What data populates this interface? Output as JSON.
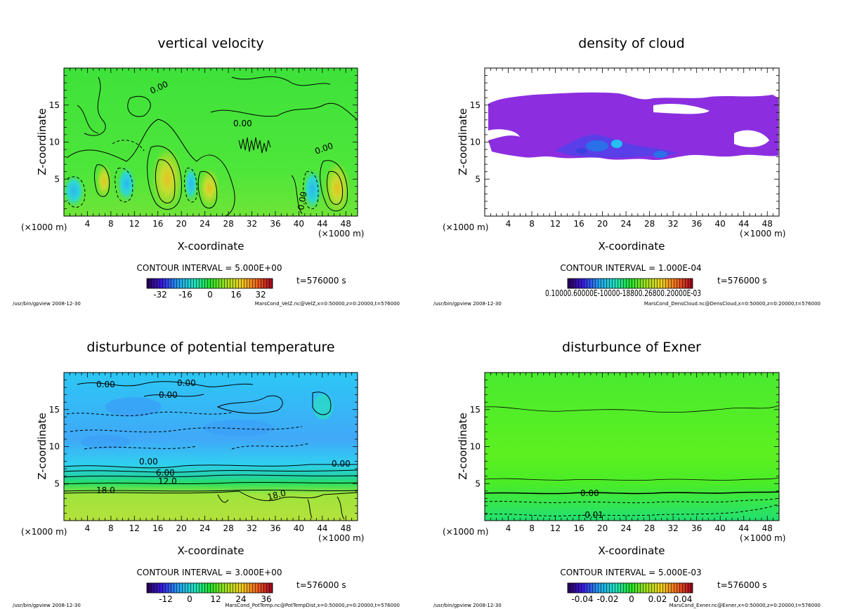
{
  "chart_data": [
    {
      "type": "heatmap",
      "title": "vertical velocity",
      "xlabel": "X-coordinate",
      "ylabel": "Z-coordinate",
      "x_unit": "(×1000 m)",
      "xlim": [
        0,
        50
      ],
      "ylim": [
        0,
        20
      ],
      "x_ticks": [
        "4",
        "8",
        "12",
        "16",
        "20",
        "24",
        "28",
        "32",
        "36",
        "40",
        "44",
        "48"
      ],
      "y_ticks": [
        "5",
        "10",
        "15"
      ],
      "contour_interval": "CONTOUR INTERVAL = 5.000E+00",
      "time": "t=576000 s",
      "colorbar_ticks": [
        "-32",
        "-16",
        "0",
        "16",
        "32"
      ],
      "contour_labels": [
        "0.00",
        "0.00",
        "0.00",
        "0.00"
      ],
      "footer_left": "/usr/bin/gpview  2008-12-30",
      "footer_right": "MarsCond_VelZ.nc@VelZ,x=0:50000,z=0:20000,t=576000"
    },
    {
      "type": "heatmap",
      "title": "density of cloud",
      "xlabel": "X-coordinate",
      "ylabel": "Z-coordinate",
      "x_unit": "(×1000 m)",
      "xlim": [
        0,
        50
      ],
      "ylim": [
        0,
        20
      ],
      "x_ticks": [
        "4",
        "8",
        "12",
        "16",
        "20",
        "24",
        "28",
        "32",
        "36",
        "40",
        "44",
        "48"
      ],
      "y_ticks": [
        "5",
        "10",
        "15"
      ],
      "contour_interval": "CONTOUR INTERVAL = 1.000E-04",
      "time": "t=576000 s",
      "colorbar_ticks_overlap": "0.10000.60000E-10000-18800.26800.20000E-03",
      "footer_left": "/usr/bin/gpview  2008-12-30",
      "footer_right": "MarsCond_DensCloud.nc@DensCloud,x=0:50000,z=0:20000,t=576000"
    },
    {
      "type": "heatmap",
      "title": "disturbunce of potential temperature",
      "xlabel": "X-coordinate",
      "ylabel": "Z-coordinate",
      "x_unit": "(×1000 m)",
      "xlim": [
        0,
        50
      ],
      "ylim": [
        0,
        20
      ],
      "x_ticks": [
        "4",
        "8",
        "12",
        "16",
        "20",
        "24",
        "28",
        "32",
        "36",
        "40",
        "44",
        "48"
      ],
      "y_ticks": [
        "5",
        "10",
        "15"
      ],
      "contour_interval": "CONTOUR INTERVAL = 3.000E+00",
      "time": "t=576000 s",
      "colorbar_ticks": [
        "-12",
        "0",
        "12",
        "24",
        "36"
      ],
      "contour_labels": [
        "0.00",
        "0.00",
        "0.00",
        "0.00",
        "0.00",
        "6.00",
        "12.0",
        "18.0",
        "18.0"
      ],
      "footer_left": "/usr/bin/gpview  2008-12-30",
      "footer_right": "MarsCond_PotTemp.nc@PotTempDist,x=0:50000,z=0:20000,t=576000"
    },
    {
      "type": "heatmap",
      "title": "disturbunce of Exner",
      "xlabel": "X-coordinate",
      "ylabel": "Z-coordinate",
      "x_unit": "(×1000 m)",
      "xlim": [
        0,
        50
      ],
      "ylim": [
        0,
        20
      ],
      "x_ticks": [
        "4",
        "8",
        "12",
        "16",
        "20",
        "24",
        "28",
        "32",
        "36",
        "40",
        "44",
        "48"
      ],
      "y_ticks": [
        "5",
        "10",
        "15"
      ],
      "contour_interval": "CONTOUR INTERVAL = 5.000E-03",
      "time": "t=576000 s",
      "colorbar_ticks": [
        "-0.04",
        "-0.02",
        "0",
        "0.02",
        "0.04"
      ],
      "contour_labels": [
        "0.00",
        "-0.01"
      ],
      "footer_left": "/usr/bin/gpview  2008-12-30",
      "footer_right": "MarsCond_Exner.nc@Exner,x=0:50000,z=0:20000,t=576000"
    }
  ],
  "colors": {
    "green": "#2ee03a",
    "bright_green": "#58f21c",
    "cyan": "#22c4ee",
    "light_blue": "#44aef8",
    "yellow_green": "#b0e43c",
    "purple": "#8c2ee0",
    "blue_violet": "#5a3ee8"
  }
}
